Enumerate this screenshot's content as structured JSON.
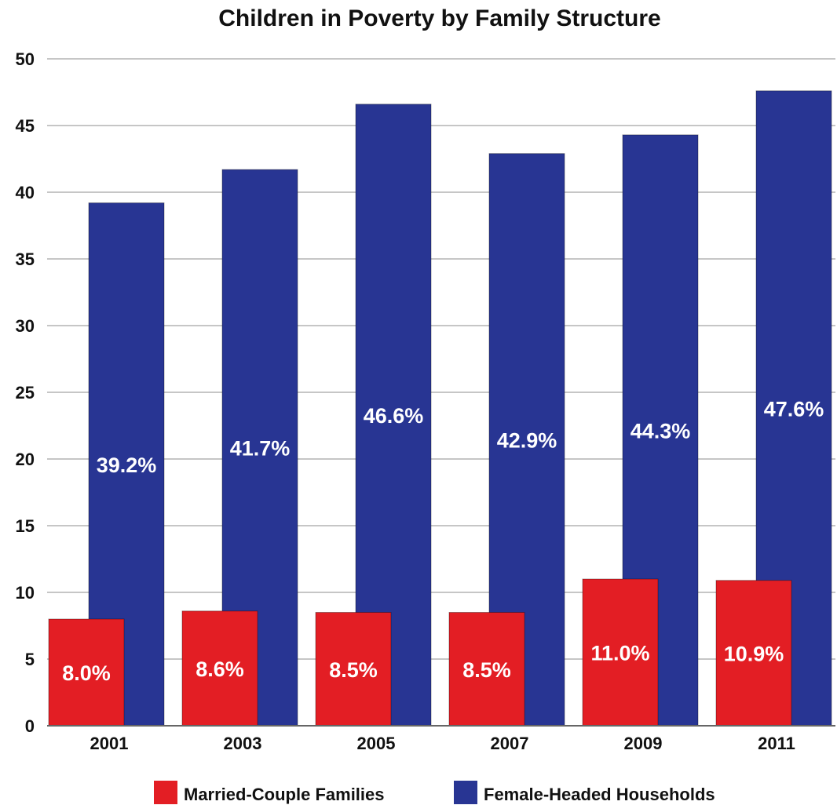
{
  "chart_data": {
    "type": "bar",
    "title": "Children in Poverty by Family Structure",
    "xlabel": "",
    "ylabel": "",
    "categories": [
      "2001",
      "2003",
      "2005",
      "2007",
      "2009",
      "2011"
    ],
    "series": [
      {
        "name": "Married-Couple Families",
        "color": "#e31e24",
        "values": [
          8.0,
          8.6,
          8.5,
          8.5,
          11.0,
          10.9
        ],
        "labels": [
          "8.0%",
          "8.6%",
          "8.5%",
          "8.5%",
          "11.0%",
          "10.9%"
        ]
      },
      {
        "name": "Female-Headed Households",
        "color": "#283593",
        "values": [
          39.2,
          41.7,
          46.6,
          42.9,
          44.3,
          47.6
        ],
        "labels": [
          "39.2%",
          "41.7%",
          "46.6%",
          "42.9%",
          "44.3%",
          "47.6%"
        ]
      }
    ],
    "ylim": [
      0,
      50
    ],
    "yticks": [
      "0",
      "5",
      "10",
      "15",
      "20",
      "25",
      "30",
      "35",
      "40",
      "45",
      "50"
    ],
    "grid": true,
    "legend_position": "bottom"
  }
}
